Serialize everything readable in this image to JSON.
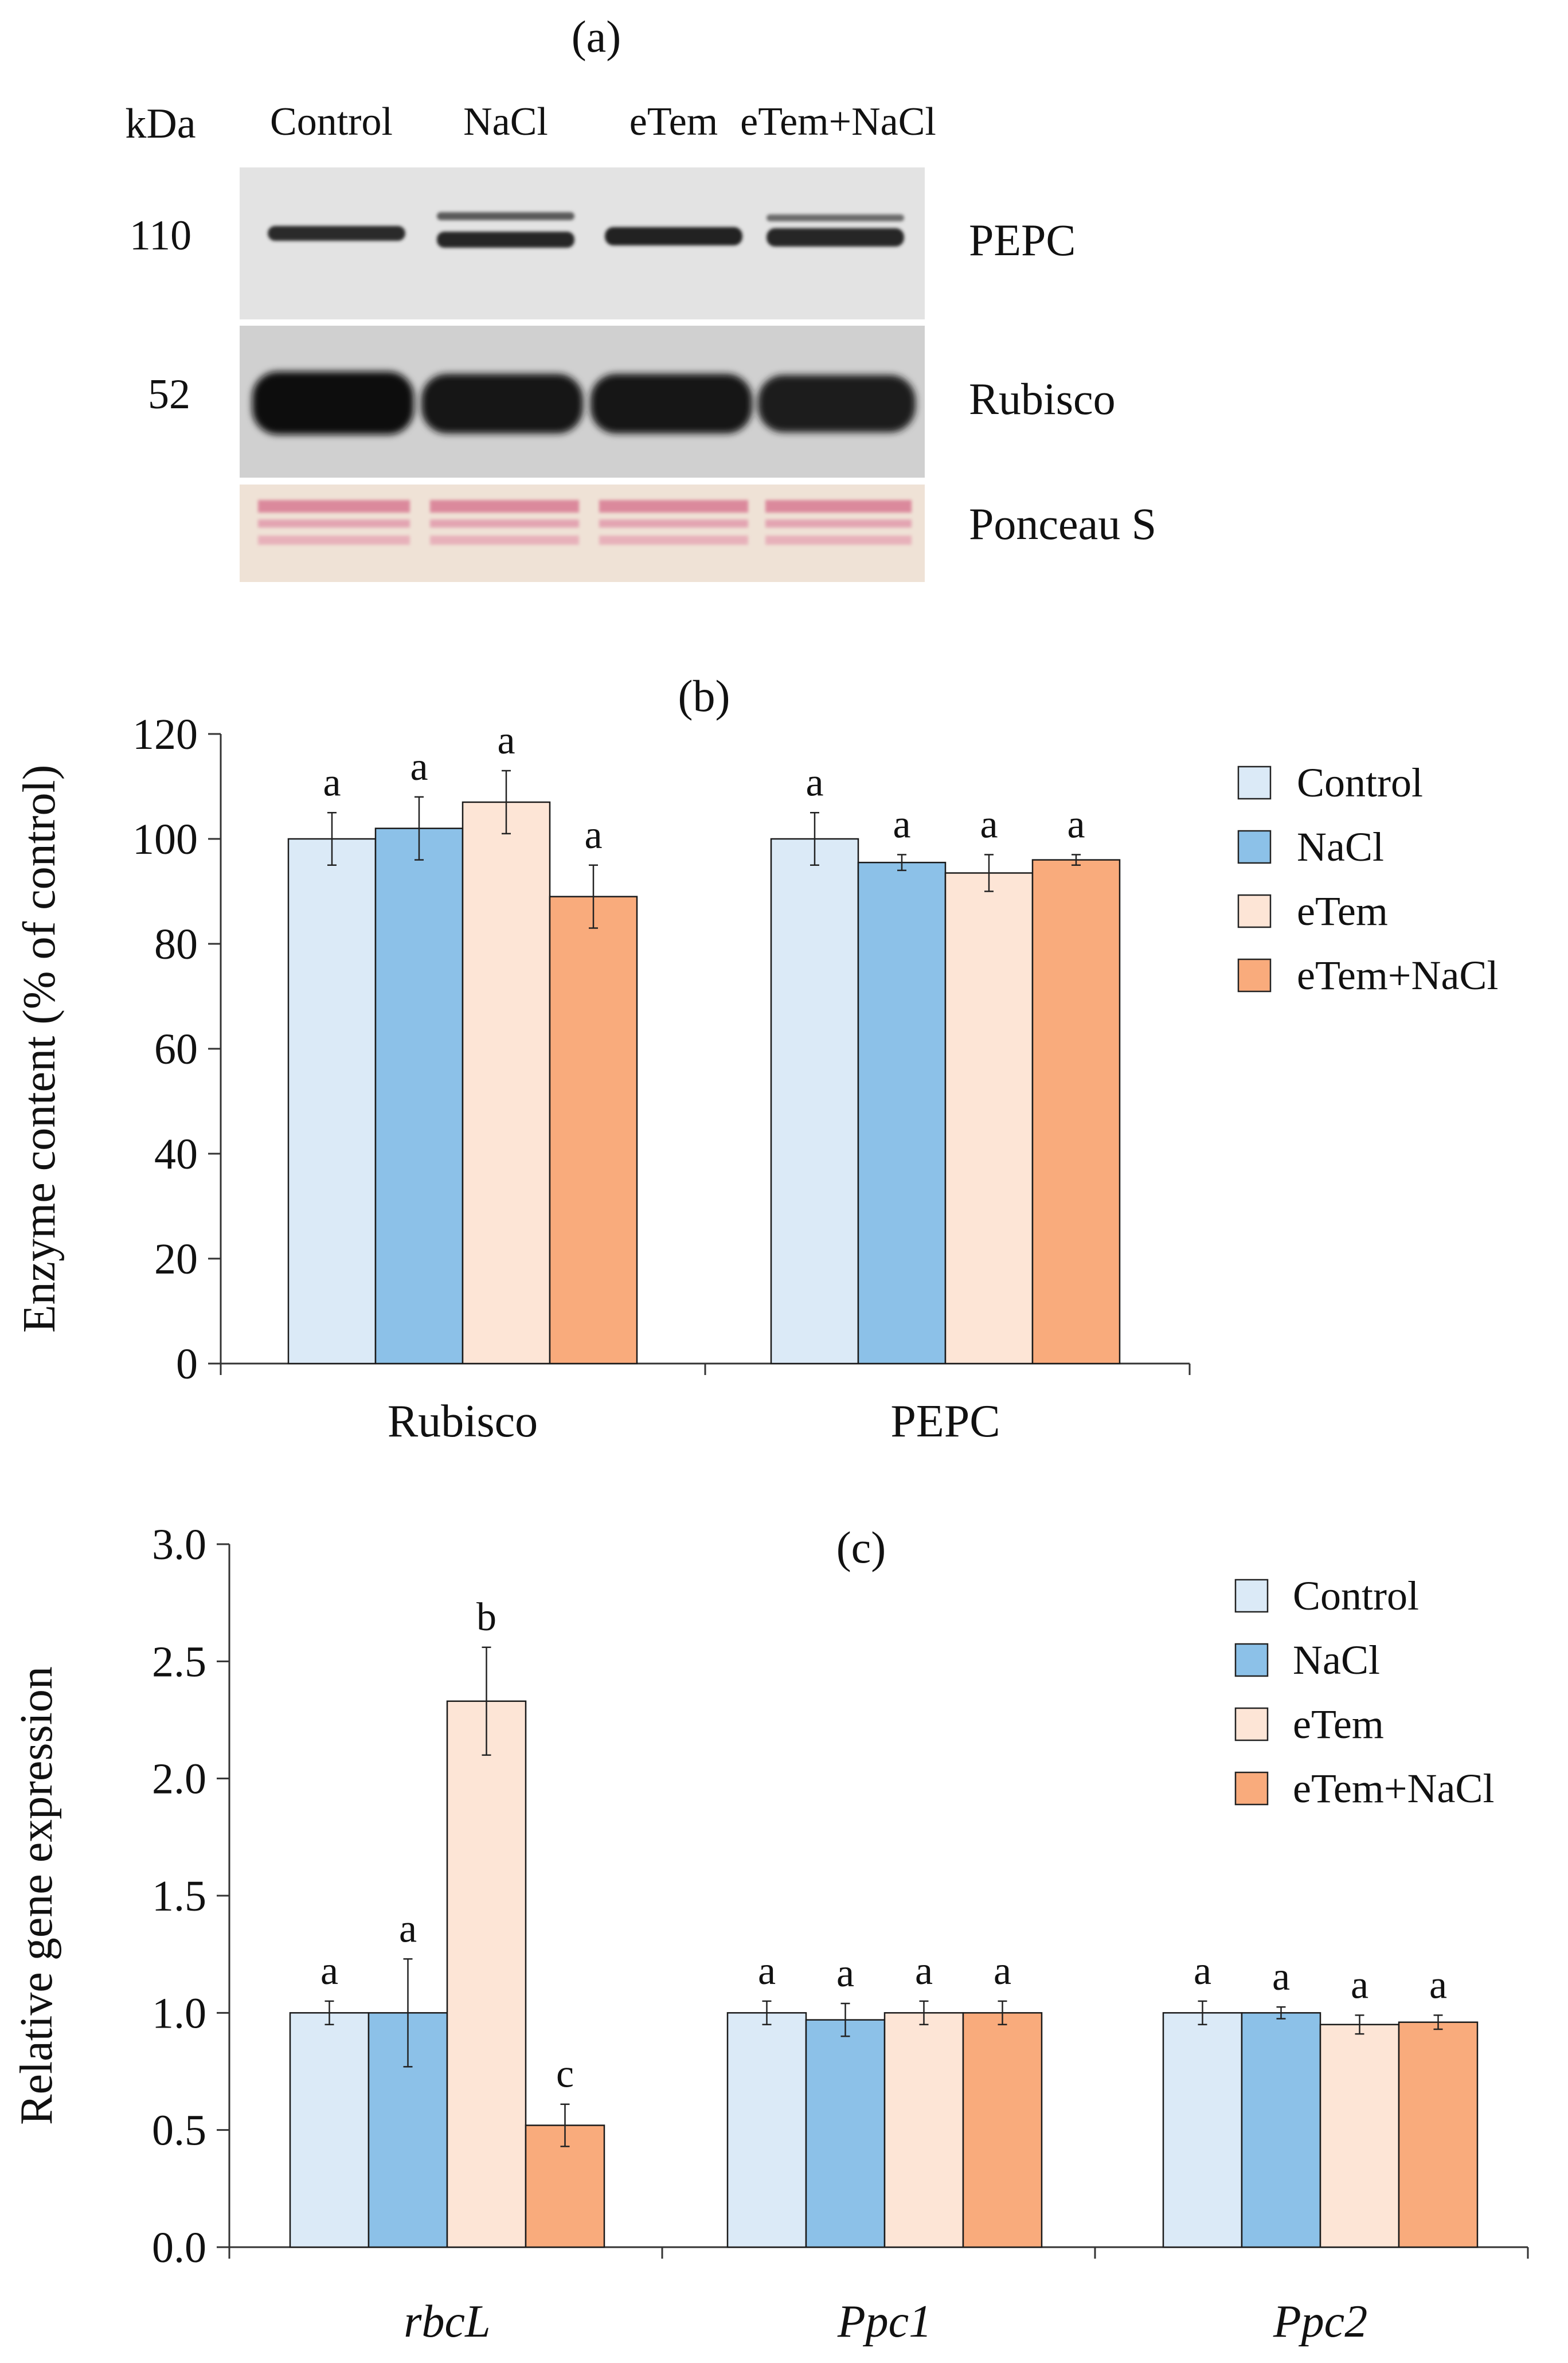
{
  "colors": {
    "control": "#dbeaf7",
    "nacl": "#8cc1e8",
    "etem": "#fde5d6",
    "etem_nacl": "#f9ab7c",
    "ponceau_bg": "#efe2d6",
    "ponceau_band": "#d97a92",
    "blot_bg": "#e2e2e2",
    "band_dark": "#141414"
  },
  "icons": [
    "legend-swatch-square"
  ],
  "blot": {
    "panel_label": "(a)",
    "kda_label": "kDa",
    "lanes": [
      "Control",
      "NaCl",
      "eTem",
      "eTem+NaCl"
    ],
    "rows": [
      {
        "name": "PEPC",
        "kda": "110"
      },
      {
        "name": "Rubisco",
        "kda": "52"
      },
      {
        "name": "Ponceau S",
        "kda": ""
      }
    ]
  },
  "chart_data": [
    {
      "type": "bar",
      "panel_label": "(b)",
      "title": "",
      "xlabel": "",
      "ylabel": "Enzyme content  (% of control)",
      "ylim": [
        0,
        120
      ],
      "yticks": [
        0,
        20,
        40,
        60,
        80,
        100,
        120
      ],
      "ytick_labels": [
        "0",
        "20",
        "40",
        "60",
        "80",
        "100",
        "120"
      ],
      "grid": false,
      "legend_position": "top-right",
      "categories": [
        "Rubisco",
        "PEPC"
      ],
      "categories_italic": false,
      "series": [
        {
          "name": "Control",
          "color_key": "control",
          "values": [
            100,
            100
          ],
          "errors": [
            5,
            5
          ],
          "letters": [
            "a",
            "a"
          ]
        },
        {
          "name": "NaCl",
          "color_key": "nacl",
          "values": [
            102,
            95.5
          ],
          "errors": [
            6,
            1.5
          ],
          "letters": [
            "a",
            "a"
          ]
        },
        {
          "name": "eTem",
          "color_key": "etem",
          "values": [
            107,
            93.5
          ],
          "errors": [
            6,
            3.5
          ],
          "letters": [
            "a",
            "a"
          ]
        },
        {
          "name": "eTem+NaCl",
          "color_key": "etem_nacl",
          "values": [
            89,
            96
          ],
          "errors": [
            6,
            1
          ],
          "letters": [
            "a",
            "a"
          ]
        }
      ]
    },
    {
      "type": "bar",
      "panel_label": "(c)",
      "title": "",
      "xlabel": "",
      "ylabel": "Relative gene expression",
      "ylim": [
        0,
        3.0
      ],
      "yticks": [
        0,
        0.5,
        1.0,
        1.5,
        2.0,
        2.5,
        3.0
      ],
      "ytick_labels": [
        "0.0",
        "0.5",
        "1.0",
        "1.5",
        "2.0",
        "2.5",
        "3.0"
      ],
      "grid": false,
      "legend_position": "top-right",
      "categories": [
        "rbcL",
        "Ppc1",
        "Ppc2"
      ],
      "categories_italic": true,
      "series": [
        {
          "name": "Control",
          "color_key": "control",
          "values": [
            1.0,
            1.0,
            1.0
          ],
          "errors": [
            0.05,
            0.05,
            0.05
          ],
          "letters": [
            "a",
            "a",
            "a"
          ]
        },
        {
          "name": "NaCl",
          "color_key": "nacl",
          "values": [
            1.0,
            0.97,
            1.0
          ],
          "errors": [
            0.23,
            0.07,
            0.025
          ],
          "letters": [
            "a",
            "a",
            "a"
          ]
        },
        {
          "name": "eTem",
          "color_key": "etem",
          "values": [
            2.33,
            1.0,
            0.95
          ],
          "errors": [
            0.23,
            0.05,
            0.04
          ],
          "letters": [
            "b",
            "a",
            "a"
          ]
        },
        {
          "name": "eTem+NaCl",
          "color_key": "etem_nacl",
          "values": [
            0.52,
            1.0,
            0.96
          ],
          "errors": [
            0.09,
            0.05,
            0.03
          ],
          "letters": [
            "c",
            "a",
            "a"
          ]
        }
      ]
    }
  ]
}
